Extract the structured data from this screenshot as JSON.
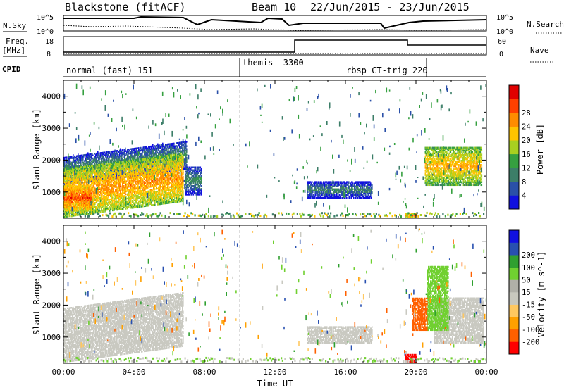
{
  "header": {
    "station": "Blackstone (fitACF)",
    "beam": "Beam 10",
    "period": "22/Jun/2015 - 23/Jun/2015"
  },
  "nsky_panel": {
    "left_label": "N.Sky",
    "right_label": "N.Search",
    "yticks": [
      "10^5",
      "10^0"
    ]
  },
  "freq_panel": {
    "left_label": "Freq.",
    "left_unit": "[MHz]",
    "left_ticks": [
      "18",
      "8"
    ],
    "right_label": "Nave",
    "right_ticks": [
      "60",
      "0"
    ]
  },
  "cpid_panel": {
    "label": "CPID",
    "modes": [
      "normal (fast) 151",
      "themis -3300",
      "rbsp CT-trig 220"
    ]
  },
  "colors": {
    "power_scale": [
      "#1010e0",
      "#2a50a8",
      "#3c7e68",
      "#36a040",
      "#a8d020",
      "#ffc400",
      "#ff8c00",
      "#ff4000",
      "#e00000"
    ],
    "velocity_scale": [
      "#ff0000",
      "#ff6000",
      "#ffa000",
      "#ffc860",
      "#c8c8be",
      "#b0b0a8",
      "#70d030",
      "#30a030",
      "#2850b0",
      "#1010e0"
    ],
    "velocity_gray": "#c9c9c1"
  },
  "chart_data": [
    {
      "type": "heatmap",
      "title": "",
      "xlabel": "",
      "ylabel": "Slant Range [km]",
      "xlim_hours": [
        0,
        24
      ],
      "ylim_km": [
        180,
        4500
      ],
      "yticks": [
        "1000",
        "2000",
        "3000",
        "4000"
      ],
      "colorbar": {
        "label": "Power [dB]",
        "ticks": [
          "4",
          "8",
          "12",
          "16",
          "20",
          "24",
          "28"
        ]
      },
      "echo_regions": [
        {
          "name": "evening band upper",
          "start_h": 0.0,
          "end_h": 7.0,
          "range_km": [
            1400,
            2300
          ],
          "value_db": 10
        },
        {
          "name": "evening band core",
          "start_h": 0.0,
          "end_h": 6.8,
          "range_km": [
            400,
            1900
          ],
          "value_db": 24
        },
        {
          "name": "near range strong",
          "start_h": 0.0,
          "end_h": 1.6,
          "range_km": [
            400,
            1200
          ],
          "value_db": 28
        },
        {
          "name": "patch 7-8h",
          "start_h": 6.9,
          "end_h": 7.8,
          "range_km": [
            900,
            1800
          ],
          "value_db": 10
        },
        {
          "name": "midday band",
          "start_h": 13.8,
          "end_h": 17.5,
          "range_km": [
            800,
            1300
          ],
          "value_db": 9
        },
        {
          "name": "morning band",
          "start_h": 20.5,
          "end_h": 23.7,
          "range_km": [
            1200,
            2400
          ],
          "value_db": 22
        },
        {
          "name": "ground scatter 20h",
          "start_h": 19.4,
          "end_h": 20.0,
          "range_km": [
            200,
            300
          ],
          "value_db": 28
        }
      ]
    },
    {
      "type": "heatmap",
      "title": "",
      "xlabel": "Time UT",
      "ylabel": "Slant Range [km]",
      "xlim_hours": [
        0,
        24
      ],
      "ylim_km": [
        180,
        4500
      ],
      "yticks": [
        "1000",
        "2000",
        "3000",
        "4000"
      ],
      "xticks": [
        "00:00",
        "04:00",
        "08:00",
        "12:00",
        "16:00",
        "20:00",
        "00:00"
      ],
      "colorbar": {
        "label": "Velocity [m s^-1]",
        "ticks": [
          "-200",
          "-100",
          "-50",
          "-15",
          "15",
          "50",
          "100",
          "200"
        ]
      },
      "echo_regions": [
        {
          "name": "evening ground scatter",
          "start_h": 0.0,
          "end_h": 6.8,
          "range_km": [
            400,
            2100
          ],
          "value_ms": 0
        },
        {
          "name": "midday ground scatter",
          "start_h": 13.8,
          "end_h": 17.5,
          "range_km": [
            800,
            1300
          ],
          "value_ms": 0
        },
        {
          "name": "morning ground scatter",
          "start_h": 21.0,
          "end_h": 23.8,
          "range_km": [
            800,
            2200
          ],
          "value_ms": 0
        },
        {
          "name": "morning green patch",
          "start_h": 20.6,
          "end_h": 21.8,
          "range_km": [
            1200,
            3200
          ],
          "value_ms": 30
        },
        {
          "name": "morning red patch",
          "start_h": 19.8,
          "end_h": 20.6,
          "range_km": [
            1200,
            2200
          ],
          "value_ms": -150
        },
        {
          "name": "red near range 20h",
          "start_h": 19.4,
          "end_h": 20.0,
          "range_km": [
            200,
            450
          ],
          "value_ms": -220
        }
      ]
    }
  ]
}
